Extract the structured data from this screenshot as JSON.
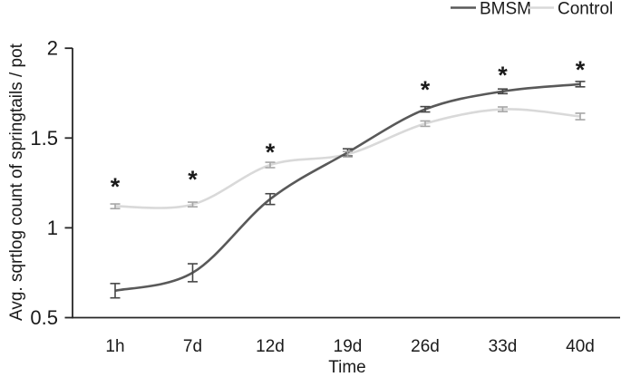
{
  "chart_data": {
    "type": "line",
    "title": "",
    "xlabel": "Time",
    "ylabel": "Avg. sqrtlog count of springtails / pot",
    "categories": [
      "1h",
      "7d",
      "12d",
      "19d",
      "26d",
      "33d",
      "40d"
    ],
    "ylim": [
      0.5,
      2
    ],
    "y_ticks": [
      0.5,
      1,
      1.5,
      2
    ],
    "y_tick_labels": [
      "0.5",
      "1",
      "1.5",
      "2"
    ],
    "grid": false,
    "legend_position": "top-right",
    "series": [
      {
        "name": "BMSM",
        "color": "#595959",
        "error_color": "#474747",
        "values": [
          0.65,
          0.75,
          1.16,
          1.42,
          1.66,
          1.76,
          1.8
        ],
        "errors": [
          0.04,
          0.05,
          0.03,
          0.02,
          0.015,
          0.013,
          0.015
        ]
      },
      {
        "name": "Control",
        "color": "#d9d9d9",
        "error_color": "#a6a6a6",
        "values": [
          1.12,
          1.13,
          1.35,
          1.41,
          1.58,
          1.66,
          1.62
        ],
        "errors": [
          0.013,
          0.013,
          0.015,
          0.015,
          0.015,
          0.013,
          0.018
        ]
      }
    ],
    "significance": {
      "symbol": "*",
      "color": "#000000",
      "points": [
        {
          "index": 0,
          "y": 1.26
        },
        {
          "index": 1,
          "y": 1.3
        },
        {
          "index": 2,
          "y": 1.45
        },
        {
          "index": 4,
          "y": 1.8
        },
        {
          "index": 5,
          "y": 1.88
        },
        {
          "index": 6,
          "y": 1.91
        }
      ]
    },
    "axis_color": "#262626"
  }
}
